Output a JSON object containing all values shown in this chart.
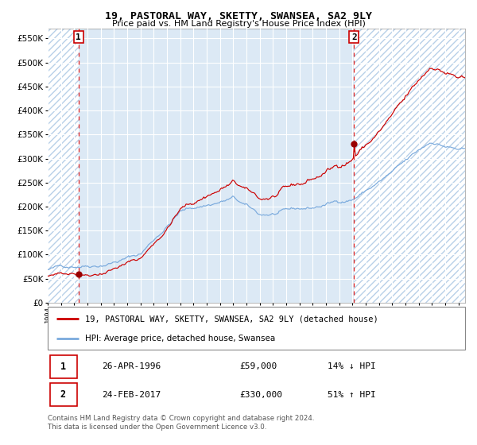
{
  "title": "19, PASTORAL WAY, SKETTY, SWANSEA, SA2 9LY",
  "subtitle": "Price paid vs. HM Land Registry's House Price Index (HPI)",
  "legend_line1": "19, PASTORAL WAY, SKETTY, SWANSEA, SA2 9LY (detached house)",
  "legend_line2": "HPI: Average price, detached house, Swansea",
  "sale1_date": "26-APR-1996",
  "sale1_price": "£59,000",
  "sale1_hpi": "14% ↓ HPI",
  "sale2_date": "24-FEB-2017",
  "sale2_price": "£330,000",
  "sale2_hpi": "51% ↑ HPI",
  "footnote1": "Contains HM Land Registry data © Crown copyright and database right 2024.",
  "footnote2": "This data is licensed under the Open Government Licence v3.0.",
  "sale1_year": 1996.32,
  "sale1_value": 59000,
  "sale2_year": 2017.12,
  "sale2_value": 330000,
  "ylim": [
    0,
    570000
  ],
  "yticks": [
    0,
    50000,
    100000,
    150000,
    200000,
    250000,
    300000,
    350000,
    400000,
    450000,
    500000,
    550000
  ],
  "xlim_start": 1994.0,
  "xlim_end": 2025.5,
  "bg_color": "#dce9f5",
  "hatch_color": "#b8d0e8",
  "grid_color": "#ffffff",
  "red_line_color": "#cc0000",
  "blue_line_color": "#7aaadd",
  "sale_dot_color": "#990000",
  "dashed_line_color": "#dd2222"
}
